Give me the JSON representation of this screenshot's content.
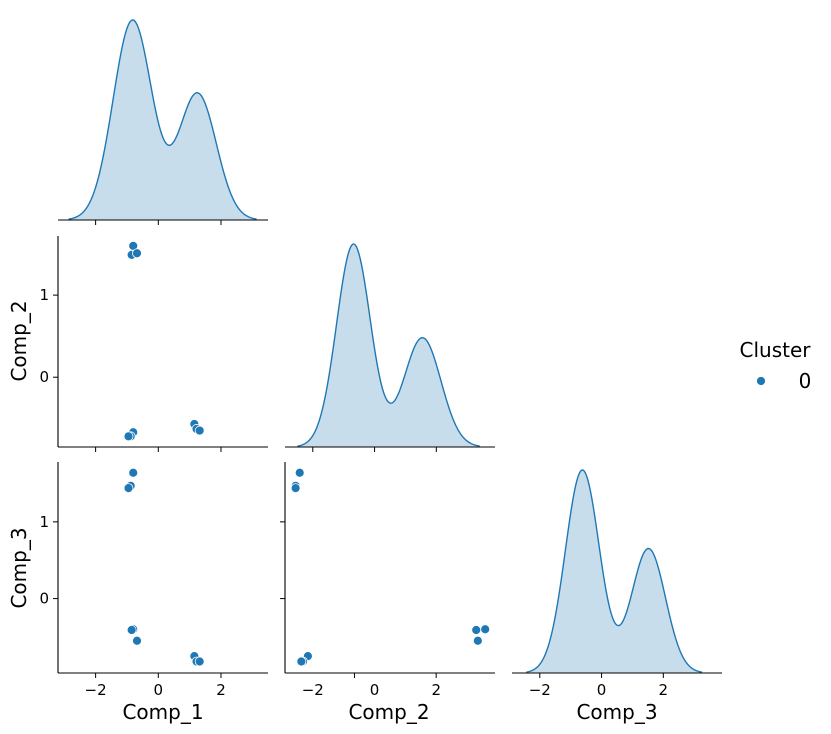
{
  "chart_data": {
    "type": "scatter",
    "kind": "pairplot-corner",
    "variables": [
      "Comp_1",
      "Comp_2",
      "Comp_3"
    ],
    "hue": {
      "title": "Cluster",
      "levels": [
        {
          "label": "0",
          "color": "#1f77b4"
        }
      ]
    },
    "axes": {
      "Comp_1": {
        "range": [
          -3.2,
          3.5
        ],
        "ticks": [
          -2,
          0,
          2
        ],
        "tick_labels": [
          "−2",
          "0",
          "2"
        ]
      },
      "Comp_2": {
        "range": [
          -0.85,
          1.72
        ],
        "ticks": [
          0,
          1
        ],
        "tick_labels": [
          "0",
          "1"
        ]
      },
      "Comp_3": {
        "range": [
          -0.97,
          1.78
        ],
        "ticks": [
          0,
          1
        ],
        "tick_labels": [
          "0",
          "1"
        ]
      }
    },
    "diagonal_axes": {
      "Comp_2": {
        "range": [
          -2.9,
          3.9
        ],
        "ticks": [
          -2,
          0,
          2
        ],
        "tick_labels": [
          "−2",
          "0",
          "2"
        ]
      },
      "Comp_3": {
        "range": [
          -2.9,
          3.9
        ],
        "ticks": [
          -2,
          0,
          2
        ],
        "tick_labels": [
          "−2",
          "0",
          "2"
        ]
      }
    },
    "points": [
      {
        "Comp_1": -0.8,
        "Comp_2": 1.6,
        "Comp_3": -0.4
      },
      {
        "Comp_1": -0.85,
        "Comp_2": 1.49,
        "Comp_3": -0.41
      },
      {
        "Comp_1": -0.68,
        "Comp_2": 1.51,
        "Comp_3": -0.55
      },
      {
        "Comp_1": -0.8,
        "Comp_2": -0.67,
        "Comp_3": 1.64
      },
      {
        "Comp_1": -0.88,
        "Comp_2": -0.72,
        "Comp_3": 1.47
      },
      {
        "Comp_1": -0.95,
        "Comp_2": -0.72,
        "Comp_3": 1.44
      },
      {
        "Comp_1": 1.15,
        "Comp_2": -0.57,
        "Comp_3": -0.75
      },
      {
        "Comp_1": 1.22,
        "Comp_2": -0.63,
        "Comp_3": -0.82
      },
      {
        "Comp_1": 1.32,
        "Comp_2": -0.65,
        "Comp_3": -0.82
      }
    ],
    "diagonal_kde": {
      "Comp_1": [
        {
          "center": -0.82,
          "sd": 0.62,
          "weight": 0.62
        },
        {
          "center": 1.25,
          "sd": 0.6,
          "weight": 0.38
        }
      ],
      "Comp_2": [
        {
          "center": -0.68,
          "sd": 0.55,
          "weight": 0.63
        },
        {
          "center": 1.55,
          "sd": 0.6,
          "weight": 0.37
        }
      ],
      "Comp_3": [
        {
          "center": -0.62,
          "sd": 0.55,
          "weight": 0.62
        },
        {
          "center": 1.52,
          "sd": 0.55,
          "weight": 0.38
        }
      ]
    },
    "grid": false,
    "legend_position": "right-center"
  }
}
